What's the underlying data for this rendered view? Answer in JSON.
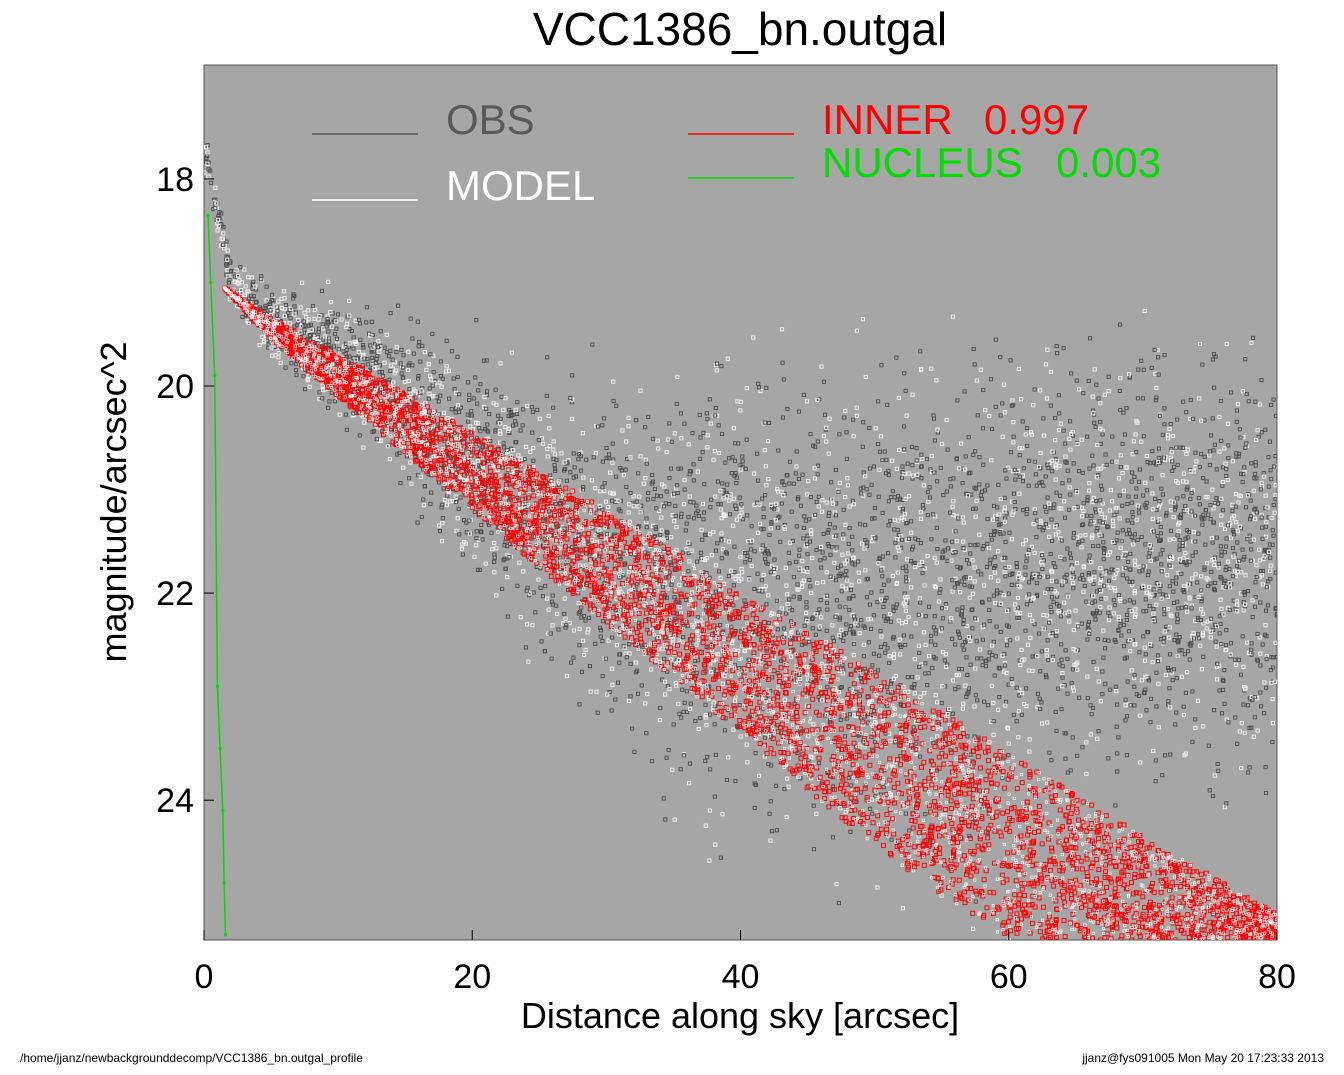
{
  "chart_data": {
    "type": "scatter",
    "title": "VCC1386_bn.outgal",
    "xlabel": "Distance along sky [arcsec]",
    "ylabel": "magnitude/arcsec^2",
    "xlim": [
      0,
      80
    ],
    "ylim": [
      25.35,
      16.9
    ],
    "y_inverted": true,
    "x_ticks": [
      "0",
      "20",
      "40",
      "60",
      "80"
    ],
    "x_tick_values": [
      0,
      20,
      40,
      60,
      80
    ],
    "y_ticks": [
      "18",
      "20",
      "22",
      "24"
    ],
    "y_tick_values": [
      18,
      20,
      22,
      24
    ],
    "background_color": "#a6a6a6",
    "grid": false,
    "legend": [
      {
        "name": "OBS",
        "color": "#595959"
      },
      {
        "name": "MODEL",
        "color": "#ffffff"
      },
      {
        "name": "INNER",
        "value": "0.997",
        "color": "#ff0000"
      },
      {
        "name": "NUCLEUS",
        "value": "0.003",
        "color": "#00dd00"
      }
    ],
    "series": [
      {
        "name": "OBS",
        "color": "#4d4d4d",
        "description_points": [
          [
            0.2,
            17.8
          ],
          [
            2,
            19.0
          ],
          [
            5,
            19.35
          ],
          [
            10,
            19.7
          ],
          [
            15,
            20.2
          ],
          [
            20,
            20.7
          ],
          [
            30,
            21.5
          ],
          [
            40,
            21.7
          ],
          [
            60,
            21.6
          ],
          [
            80,
            21.8
          ]
        ]
      },
      {
        "name": "INNER",
        "color": "#ff0000",
        "x": [
          1.5,
          5,
          10,
          20,
          30,
          40,
          50,
          60,
          70,
          80
        ],
        "y_upper": [
          19.05,
          19.35,
          19.7,
          20.45,
          21.2,
          22.0,
          22.75,
          23.55,
          24.35,
          25.1
        ],
        "y_lower": [
          19.05,
          19.55,
          20.1,
          21.2,
          22.3,
          23.35,
          24.45,
          25.35,
          25.35,
          25.35
        ]
      },
      {
        "name": "NUCLEUS",
        "color": "#00dd00",
        "x": [
          0.3,
          0.5,
          0.8,
          1.0,
          1.2,
          1.4,
          1.5,
          1.6
        ],
        "y": [
          18.35,
          19.0,
          19.9,
          22.9,
          23.5,
          24.1,
          24.8,
          25.3
        ]
      }
    ]
  },
  "footer": {
    "left": "/home/jjanz/newbackgrounddecomp/VCC1386_bn.outgal_profile",
    "right": "jjanz@fys091005  Mon May 20 17:23:33 2013"
  }
}
